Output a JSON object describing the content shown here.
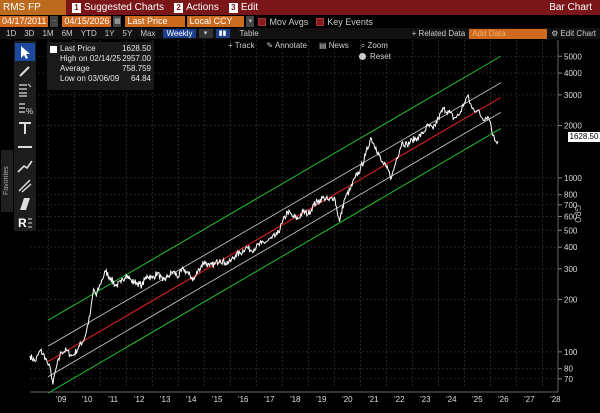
{
  "titlebar": {
    "ticker": "RMS FP Equity",
    "menu": [
      {
        "num": "1",
        "label": "Suggested Charts"
      },
      {
        "num": "2",
        "label": "Actions"
      },
      {
        "num": "3",
        "label": "Edit"
      }
    ],
    "right_label": "Bar Chart"
  },
  "fieldbar": {
    "start_date": "04/17/2011",
    "end_date": "04/15/2026",
    "price_field": "Last Price",
    "currency": "Local CCY",
    "mov_avgs": "Mov Avgs",
    "key_events": "Key Events"
  },
  "periodbar": {
    "periods": [
      "1D",
      "3D",
      "1M",
      "6M",
      "YTD",
      "1Y",
      "5Y",
      "Max"
    ],
    "frequency": "Weekly",
    "table_label": "Table",
    "related_data": "+ Related Data",
    "add_data_placeholder": "Add Data",
    "edit_chart": "Edit Chart"
  },
  "chart_tools": {
    "track": "Track",
    "annotate": "Annotate",
    "news": "News",
    "zoom": "Zoom",
    "reset": "Reset"
  },
  "sidebar": {
    "favorites_label": "Favorites"
  },
  "legend": {
    "series": "Last Price",
    "series_value": "1628.50",
    "high_label": "High on 02/14/25",
    "high_value": "2957.00",
    "avg_label": "Average",
    "avg_value": "758.759",
    "low_label": "Low on 03/06/09",
    "low_value": "64.84"
  },
  "colors": {
    "background": "#000000",
    "price_line": "#ffffff",
    "regression_line": "#d42020",
    "inner_band": "#bdbdbd",
    "outer_band": "#22c02a",
    "last_price_badge": "#ffffff",
    "title_bar": "#7a1518",
    "field_orange": "#d06a1e"
  },
  "chart_data": {
    "type": "line",
    "title": "",
    "xlabel": "",
    "ylabel": "",
    "y_scale": "log",
    "ylim": [
      62,
      6200
    ],
    "y_ticks": [
      70,
      80,
      100,
      200,
      300,
      400,
      500,
      600,
      700,
      800,
      1000,
      2000,
      3000,
      4000,
      5000
    ],
    "x_ticks": [
      "'09",
      "'10",
      "'11",
      "'12",
      "'13",
      "'14",
      "'15",
      "'16",
      "'17",
      "'18",
      "'19",
      "'20",
      "'21",
      "'22",
      "'23",
      "'24",
      "'25",
      "'26",
      "'27",
      "'28"
    ],
    "xlim": [
      2008.3,
      2028.6
    ],
    "last_value_label": "1628.50",
    "right_axis_label": "GPO",
    "series": [
      {
        "name": "Last Price",
        "x": [
          2008.3,
          2008.5,
          2008.7,
          2008.9,
          2009.0,
          2009.1,
          2009.18,
          2009.3,
          2009.5,
          2009.7,
          2009.9,
          2010.0,
          2010.2,
          2010.4,
          2010.6,
          2010.75,
          2010.85,
          2011.0,
          2011.2,
          2011.4,
          2011.6,
          2011.8,
          2012.0,
          2012.2,
          2012.4,
          2012.6,
          2012.8,
          2013.0,
          2013.2,
          2013.4,
          2013.6,
          2013.8,
          2014.0,
          2014.2,
          2014.4,
          2014.6,
          2014.8,
          2015.0,
          2015.2,
          2015.4,
          2015.6,
          2015.8,
          2016.0,
          2016.2,
          2016.4,
          2016.6,
          2016.8,
          2017.0,
          2017.2,
          2017.4,
          2017.6,
          2017.8,
          2018.0,
          2018.2,
          2018.4,
          2018.6,
          2018.8,
          2019.0,
          2019.2,
          2019.4,
          2019.6,
          2019.8,
          2020.0,
          2020.2,
          2020.4,
          2020.6,
          2020.8,
          2021.0,
          2021.2,
          2021.4,
          2021.6,
          2021.8,
          2022.0,
          2022.2,
          2022.4,
          2022.6,
          2022.8,
          2023.0,
          2023.2,
          2023.4,
          2023.6,
          2023.8,
          2024.0,
          2024.2,
          2024.4,
          2024.6,
          2024.8,
          2025.0,
          2025.12,
          2025.3,
          2025.5,
          2025.7,
          2025.9,
          2026.0,
          2026.1,
          2026.2,
          2026.29
        ],
        "values": [
          95,
          88,
          102,
          92,
          84,
          78,
          65,
          80,
          100,
          102,
          95,
          97,
          108,
          120,
          160,
          230,
          210,
          245,
          290,
          265,
          240,
          250,
          280,
          255,
          250,
          240,
          275,
          265,
          285,
          255,
          270,
          290,
          270,
          300,
          280,
          260,
          300,
          330,
          310,
          320,
          340,
          325,
          330,
          360,
          370,
          400,
          385,
          400,
          420,
          430,
          450,
          470,
          550,
          640,
          600,
          580,
          640,
          620,
          700,
          740,
          770,
          740,
          780,
          560,
          760,
          850,
          1000,
          1120,
          1350,
          1700,
          1500,
          1250,
          1150,
          1000,
          1300,
          1600,
          1550,
          1650,
          1700,
          1800,
          2000,
          1900,
          2200,
          2500,
          2400,
          2200,
          2300,
          2700,
          2957,
          2500,
          2450,
          2200,
          2250,
          2100,
          1750,
          1628.5,
          1628.5
        ]
      },
      {
        "name": "Regression",
        "x": [
          2009.0,
          2026.4
        ],
        "values": [
          88,
          2900
        ]
      },
      {
        "name": "Inner upper band",
        "x": [
          2009.0,
          2026.4
        ],
        "values": [
          108,
          3520
        ]
      },
      {
        "name": "Inner lower band",
        "x": [
          2009.0,
          2026.4
        ],
        "values": [
          72,
          2380
        ]
      },
      {
        "name": "Outer upper band",
        "x": [
          2009.0,
          2026.4
        ],
        "values": [
          152,
          5000
        ]
      },
      {
        "name": "Outer lower band",
        "x": [
          2009.0,
          2026.4
        ],
        "values": [
          58,
          1920
        ]
      }
    ]
  }
}
